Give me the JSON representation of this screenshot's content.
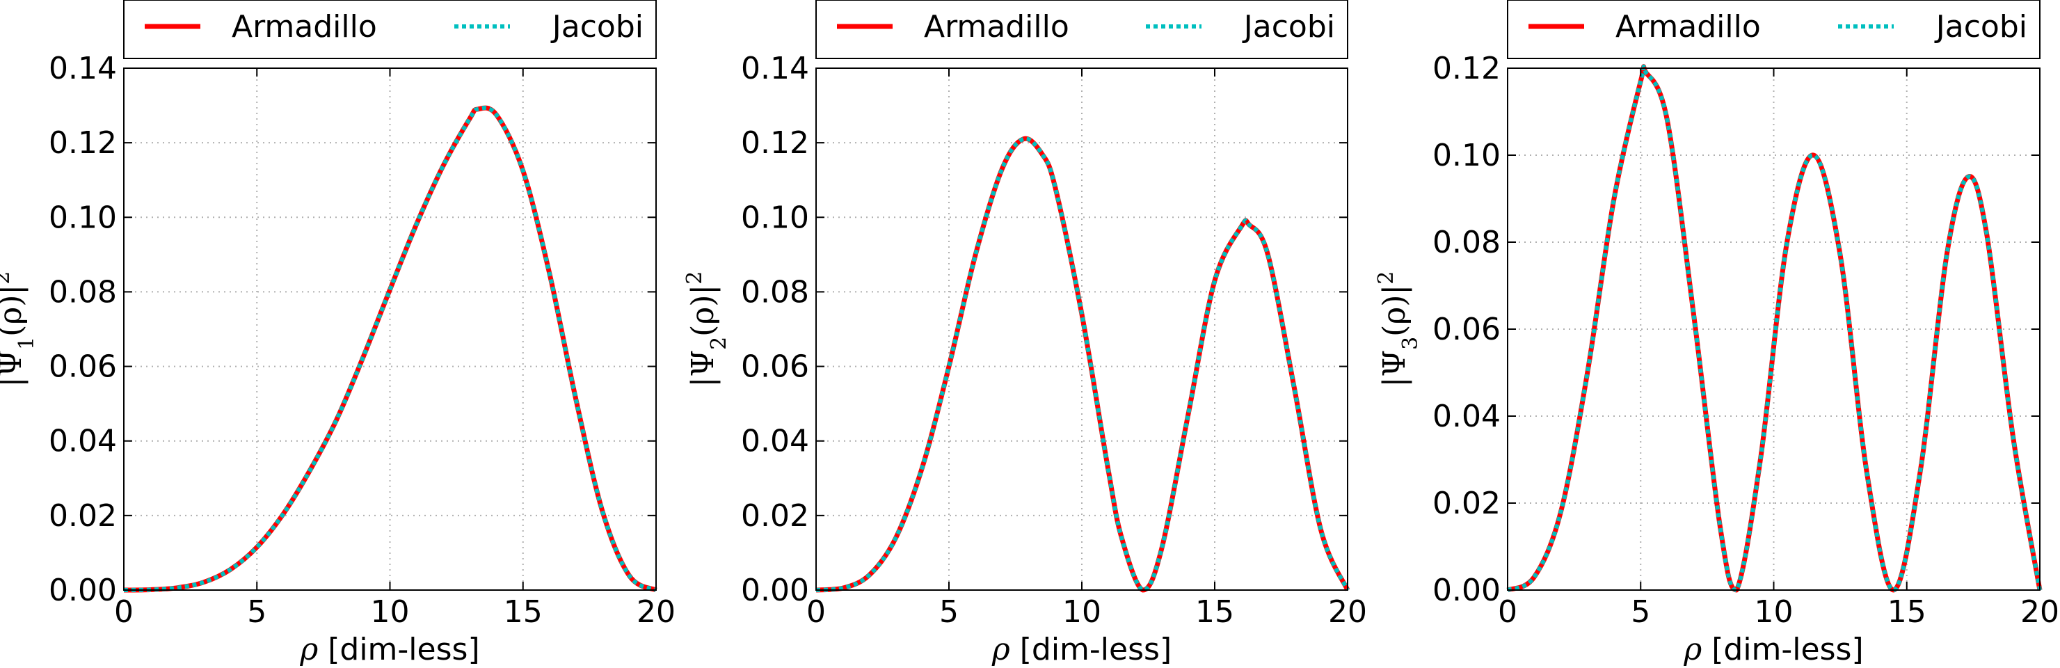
{
  "colors": {
    "armadillo": "#ff0000",
    "jacobi": "#00bfbf",
    "grid": "#b0b0b0",
    "axis": "#000000"
  },
  "chart_data": [
    {
      "type": "line",
      "xlabel_symbol": "ρ",
      "xlabel_text": "[dim-less]",
      "ylabel": {
        "base": "|Ψ",
        "sub": "1",
        "arg": "(ρ)|",
        "sup": "2"
      },
      "xlim": [
        0,
        20
      ],
      "ylim": [
        0,
        0.14
      ],
      "xticks": [
        0,
        5,
        10,
        15,
        20
      ],
      "yticks": [
        0.0,
        0.02,
        0.04,
        0.06,
        0.08,
        0.1,
        0.12,
        0.14
      ],
      "ytick_labels": [
        "0.00",
        "0.02",
        "0.04",
        "0.06",
        "0.08",
        "0.10",
        "0.12",
        "0.14"
      ],
      "grid": true,
      "legend_position": "top (above plot)",
      "legend": [
        "Armadillo",
        "Jacobi"
      ],
      "x": [
        0,
        1,
        2,
        3,
        4,
        5,
        6,
        7,
        8,
        9,
        10,
        11,
        12,
        13,
        13.3,
        14,
        15,
        16,
        17,
        18,
        19,
        20
      ],
      "series": [
        {
          "name": "Armadillo",
          "values": [
            0,
            0.0001,
            0.0006,
            0.0021,
            0.0055,
            0.0115,
            0.0205,
            0.0322,
            0.0458,
            0.0626,
            0.0806,
            0.0982,
            0.1138,
            0.1265,
            0.129,
            0.1275,
            0.1125,
            0.0848,
            0.0508,
            0.0208,
            0.0038,
            0
          ]
        },
        {
          "name": "Jacobi",
          "values": [
            0,
            0.0001,
            0.0006,
            0.0021,
            0.0055,
            0.0115,
            0.0205,
            0.0322,
            0.0458,
            0.0626,
            0.0806,
            0.0982,
            0.1138,
            0.1265,
            0.129,
            0.1275,
            0.1125,
            0.0848,
            0.0508,
            0.0208,
            0.0038,
            0
          ]
        }
      ]
    },
    {
      "type": "line",
      "xlabel_symbol": "ρ",
      "xlabel_text": "[dim-less]",
      "ylabel": {
        "base": "|Ψ",
        "sub": "2",
        "arg": "(ρ)|",
        "sup": "2"
      },
      "xlim": [
        0,
        20
      ],
      "ylim": [
        0,
        0.14
      ],
      "xticks": [
        0,
        5,
        10,
        15,
        20
      ],
      "yticks": [
        0.0,
        0.02,
        0.04,
        0.06,
        0.08,
        0.1,
        0.12,
        0.14
      ],
      "ytick_labels": [
        "0.00",
        "0.02",
        "0.04",
        "0.06",
        "0.08",
        "0.10",
        "0.12",
        "0.14"
      ],
      "grid": true,
      "legend_position": "top (above plot)",
      "legend": [
        "Armadillo",
        "Jacobi"
      ],
      "x": [
        0,
        1,
        2,
        3,
        4,
        5,
        6,
        7,
        7.8,
        8.5,
        9,
        10,
        11,
        11.5,
        12.3,
        13,
        14,
        15,
        16,
        16.3,
        17,
        18,
        19,
        20
      ],
      "series": [
        {
          "name": "Armadillo",
          "values": [
            0,
            0.0005,
            0.004,
            0.014,
            0.033,
            0.06,
            0.09,
            0.113,
            0.121,
            0.117,
            0.108,
            0.074,
            0.032,
            0.014,
            0,
            0.011,
            0.047,
            0.083,
            0.0975,
            0.098,
            0.09,
            0.054,
            0.016,
            0
          ]
        },
        {
          "name": "Jacobi",
          "values": [
            0,
            0.0005,
            0.004,
            0.014,
            0.033,
            0.06,
            0.09,
            0.113,
            0.121,
            0.117,
            0.108,
            0.074,
            0.032,
            0.014,
            0,
            0.011,
            0.047,
            0.083,
            0.0975,
            0.098,
            0.09,
            0.054,
            0.016,
            0
          ]
        }
      ]
    },
    {
      "type": "line",
      "xlabel_symbol": "ρ",
      "xlabel_text": "[dim-less]",
      "ylabel": {
        "base": "|Ψ",
        "sub": "3",
        "arg": "(ρ)|",
        "sup": "2"
      },
      "xlim": [
        0,
        20
      ],
      "ylim": [
        0,
        0.12
      ],
      "xticks": [
        0,
        5,
        10,
        15,
        20
      ],
      "yticks": [
        0.0,
        0.02,
        0.04,
        0.06,
        0.08,
        0.1,
        0.12
      ],
      "ytick_labels": [
        "0.00",
        "0.02",
        "0.04",
        "0.06",
        "0.08",
        "0.10",
        "0.12"
      ],
      "grid": true,
      "legend_position": "top (above plot)",
      "legend": [
        "Armadillo",
        "Jacobi"
      ],
      "x": [
        0,
        1,
        2,
        3,
        4,
        5,
        5.2,
        6,
        7,
        8,
        8.6,
        9.5,
        10.5,
        11.5,
        12.5,
        13.5,
        14.5,
        15.5,
        16.5,
        17.3,
        18,
        19,
        20
      ],
      "series": [
        {
          "name": "Armadillo",
          "values": [
            0,
            0.003,
            0.018,
            0.05,
            0.09,
            0.117,
            0.119,
            0.108,
            0.063,
            0.014,
            0,
            0.03,
            0.08,
            0.1,
            0.077,
            0.027,
            0,
            0.027,
            0.077,
            0.095,
            0.082,
            0.035,
            0
          ]
        },
        {
          "name": "Jacobi",
          "values": [
            0,
            0.003,
            0.018,
            0.05,
            0.09,
            0.117,
            0.119,
            0.108,
            0.063,
            0.014,
            0,
            0.03,
            0.08,
            0.1,
            0.077,
            0.027,
            0,
            0.027,
            0.077,
            0.095,
            0.082,
            0.035,
            0
          ]
        }
      ]
    }
  ]
}
